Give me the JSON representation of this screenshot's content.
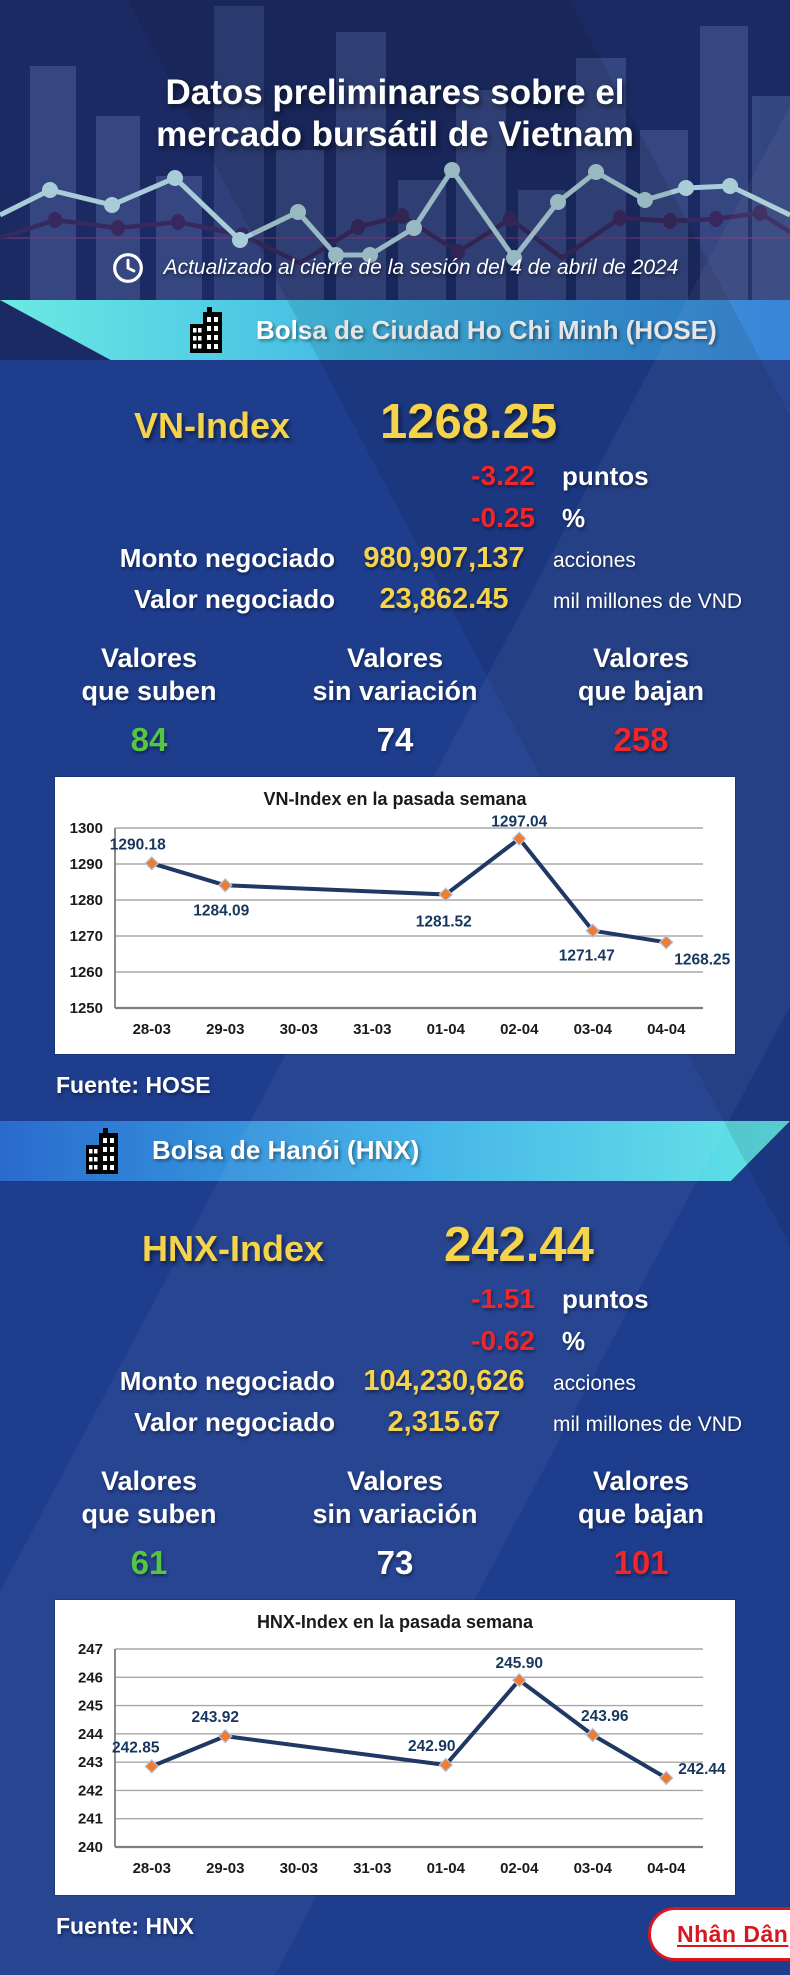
{
  "header": {
    "title_line1": "Datos preliminares sobre el",
    "title_line2": "mercado bursátil de Vietnam",
    "updated_text": "Actualizado al cierre de la sesión del 4 de abril de 2024"
  },
  "colors": {
    "header_bg": "#1b2a63",
    "body_bg": "#1e3d8d",
    "accent_yellow": "#f5d34b",
    "negative_red": "#f2262a",
    "positive_green": "#55c544",
    "hose_banner_gradient": [
      "#6ceae2",
      "#2f7ed6"
    ],
    "hnx_banner_gradient": [
      "#2a6bcd",
      "#62e5e5"
    ],
    "brand_red": "#d6171f"
  },
  "hose": {
    "banner_label": "Bolsa de Ciudad Ho Chi Minh (HOSE)",
    "index_label": "VN-Index",
    "index_value": "1268.25",
    "change_points": "-3.22",
    "change_points_unit": "puntos",
    "change_percent": "-0.25",
    "change_percent_unit": "%",
    "volume_label": "Monto negociado",
    "volume_value": "980,907,137",
    "volume_unit": "acciones",
    "turnover_label": "Valor negociado",
    "turnover_value": "23,862.45",
    "turnover_unit": "mil millones de VND",
    "advancers_label_line1": "Valores",
    "advancers_label_line2": "que suben",
    "advancers_value": "84",
    "unchanged_label_line1": "Valores",
    "unchanged_label_line2": "sin variación",
    "unchanged_value": "74",
    "decliners_label_line1": "Valores",
    "decliners_label_line2": "que bajan",
    "decliners_value": "258",
    "source": "Fuente: HOSE"
  },
  "hnx": {
    "banner_label": "Bolsa de Hanói (HNX)",
    "index_label": "HNX-Index",
    "index_value": "242.44",
    "change_points": "-1.51",
    "change_points_unit": "puntos",
    "change_percent": "-0.62",
    "change_percent_unit": "%",
    "volume_label": "Monto negociado",
    "volume_value": "104,230,626",
    "volume_unit": "acciones",
    "turnover_label": "Valor negociado",
    "turnover_value": "2,315.67",
    "turnover_unit": "mil millones de VND",
    "advancers_label_line1": "Valores",
    "advancers_label_line2": "que suben",
    "advancers_value": "61",
    "unchanged_label_line1": "Valores",
    "unchanged_label_line2": "sin variación",
    "unchanged_value": "73",
    "decliners_label_line1": "Valores",
    "decliners_label_line2": "que bajan",
    "decliners_value": "101",
    "source": "Fuente:  HNX"
  },
  "footer": {
    "brand": "Nhân Dân"
  },
  "chart_data": [
    {
      "type": "line",
      "title": "VN-Index en la pasada semana",
      "categories": [
        "28-03",
        "29-03",
        "30-03",
        "31-03",
        "01-04",
        "02-04",
        "03-04",
        "04-04"
      ],
      "ylim": [
        1250,
        1300
      ],
      "ystep": 10,
      "grid": true,
      "legend": false,
      "line_color": "#1f3864",
      "marker_color": "#ed7d31",
      "marker_stroke": "#b4c7e7",
      "series": [
        {
          "name": "VN-Index",
          "points": [
            {
              "category": "28-03",
              "value": 1290.18,
              "label": "1290.18",
              "dx": -14,
              "dy": -14,
              "anchor": "middle"
            },
            {
              "category": "29-03",
              "value": 1284.09,
              "label": "1284.09",
              "dx": -4,
              "dy": 30,
              "anchor": "middle"
            },
            {
              "category": "01-04",
              "value": 1281.52,
              "label": "1281.52",
              "dx": -2,
              "dy": 32,
              "anchor": "middle"
            },
            {
              "category": "02-04",
              "value": 1297.04,
              "label": "1297.04",
              "dx": 0,
              "dy": -12,
              "anchor": "middle"
            },
            {
              "category": "03-04",
              "value": 1271.47,
              "label": "1271.47",
              "dx": -6,
              "dy": 30,
              "anchor": "middle"
            },
            {
              "category": "04-04",
              "value": 1268.25,
              "label": "1268.25",
              "dx": 8,
              "dy": 22,
              "anchor": "start"
            }
          ]
        }
      ]
    },
    {
      "type": "line",
      "title": "HNX-Index en la pasada semana",
      "categories": [
        "28-03",
        "29-03",
        "30-03",
        "31-03",
        "01-04",
        "02-04",
        "03-04",
        "04-04"
      ],
      "ylim": [
        240,
        247
      ],
      "ystep": 1,
      "grid": true,
      "legend": false,
      "line_color": "#1f3864",
      "marker_color": "#ed7d31",
      "marker_stroke": "#b4c7e7",
      "series": [
        {
          "name": "HNX-Index",
          "points": [
            {
              "category": "28-03",
              "value": 242.85,
              "label": "242.85",
              "dx": -16,
              "dy": -14,
              "anchor": "middle"
            },
            {
              "category": "29-03",
              "value": 243.92,
              "label": "243.92",
              "dx": -10,
              "dy": -14,
              "anchor": "middle"
            },
            {
              "category": "01-04",
              "value": 242.9,
              "label": "242.90",
              "dx": -14,
              "dy": -14,
              "anchor": "middle"
            },
            {
              "category": "02-04",
              "value": 245.9,
              "label": "245.90",
              "dx": 0,
              "dy": -12,
              "anchor": "middle"
            },
            {
              "category": "03-04",
              "value": 243.96,
              "label": "243.96",
              "dx": 12,
              "dy": -14,
              "anchor": "middle"
            },
            {
              "category": "04-04",
              "value": 242.44,
              "label": "242.44",
              "dx": 12,
              "dy": -4,
              "anchor": "start"
            }
          ]
        }
      ]
    }
  ]
}
